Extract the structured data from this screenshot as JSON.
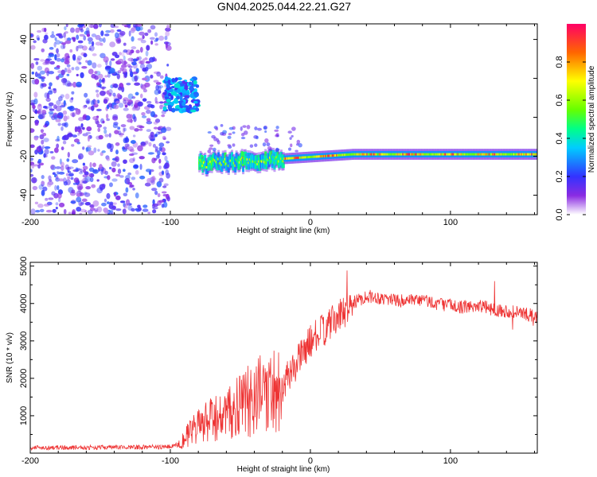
{
  "title": "GN04.2025.044.22.21.G27",
  "chart_data": [
    {
      "type": "heatmap",
      "xlabel": "Height of straight line (km)",
      "ylabel": "Frequency (Hz)",
      "xlim": [
        -200,
        162
      ],
      "ylim": [
        -50,
        48
      ],
      "xticks": [
        -200,
        -100,
        0,
        100
      ],
      "yticks": [
        -40,
        -20,
        0,
        20,
        40
      ],
      "colorbar": {
        "label": "Normalized spectral amplitude",
        "range": [
          0,
          1
        ],
        "ticks": [
          "0.0",
          "0.2",
          "0.4",
          "0.6",
          "0.8"
        ],
        "tick_values": [
          0,
          0.2,
          0.4,
          0.6,
          0.8
        ]
      },
      "regions": [
        {
          "name": "noise",
          "x": [
            -200,
            -101
          ],
          "freq": [
            -50,
            48
          ],
          "amplitude": [
            0.05,
            0.25
          ]
        },
        {
          "name": "early-cluster",
          "x": [
            -104,
            -80
          ],
          "freq": [
            3,
            20
          ],
          "amplitude": [
            0.15,
            0.4
          ]
        },
        {
          "name": "doppler-track",
          "x": [
            -80,
            162
          ],
          "freq_start": -24,
          "freq_end": -19,
          "amplitude": [
            0.3,
            0.9
          ]
        }
      ]
    },
    {
      "type": "line",
      "xlabel": "Height of straight line (km)",
      "ylabel": "SNR (10 * v/v)",
      "xlim": [
        -200,
        162
      ],
      "ylim": [
        0,
        5100
      ],
      "xticks": [
        -200,
        -100,
        0,
        100
      ],
      "yticks": [
        1000,
        2000,
        3000,
        4000,
        5000
      ],
      "color": "#ee3333",
      "series": [
        {
          "x": [
            -200,
            -180,
            -160,
            -140,
            -120,
            -100,
            -95,
            -90,
            -80,
            -70,
            -60,
            -50,
            -40,
            -30,
            -20,
            -10,
            0,
            10,
            20,
            30,
            40,
            50,
            60,
            70,
            80,
            90,
            100,
            110,
            120,
            130,
            140,
            150,
            162
          ],
          "values": [
            150,
            150,
            150,
            160,
            160,
            170,
            250,
            400,
            700,
            900,
            1000,
            1250,
            1500,
            1650,
            1800,
            2400,
            3000,
            3300,
            3650,
            4000,
            4200,
            4150,
            4100,
            4050,
            4100,
            4000,
            3950,
            3900,
            3950,
            3850,
            3800,
            3750,
            3650
          ]
        }
      ]
    }
  ]
}
